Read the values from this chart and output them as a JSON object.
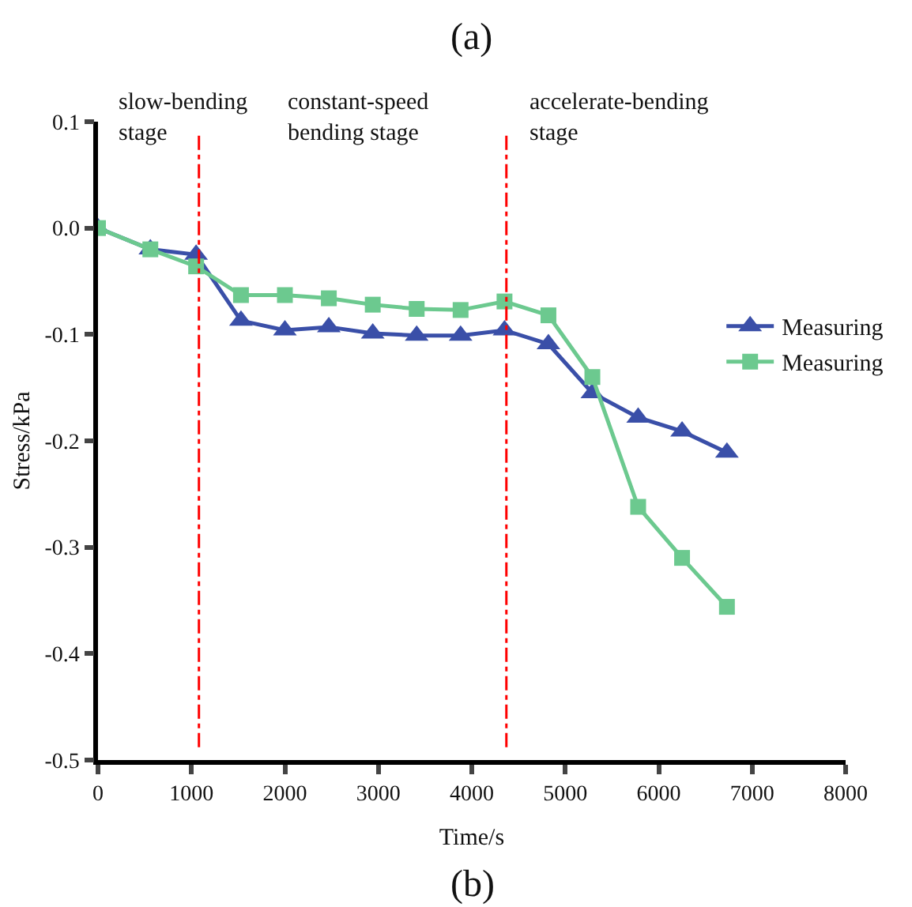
{
  "chart_data": {
    "type": "line",
    "xlabel": "Time/s",
    "ylabel": "Stress/kPa",
    "annotations": [
      "(a)",
      "(b)",
      "slow-bending\nstage",
      "constant-speed\nbending stage",
      "accelerate-bending\nstage"
    ],
    "x": [
      0,
      560,
      1050,
      1530,
      2000,
      2470,
      2940,
      3410,
      3880,
      4350,
      4820,
      5290,
      5780,
      6250,
      6730
    ],
    "series": [
      {
        "name": "Measuring",
        "color": "#3a4fa8",
        "marker": "triangle",
        "values": [
          0,
          -0.02,
          -0.025,
          -0.087,
          -0.096,
          -0.093,
          -0.099,
          -0.101,
          -0.101,
          -0.096,
          -0.109,
          -0.155,
          -0.178,
          -0.191,
          -0.211
        ]
      },
      {
        "name": "Measuring",
        "color": "#6cc98f",
        "marker": "square",
        "values": [
          0,
          -0.02,
          -0.036,
          -0.063,
          -0.063,
          -0.066,
          -0.072,
          -0.076,
          -0.077,
          -0.069,
          -0.082,
          -0.14,
          -0.262,
          -0.31,
          -0.356
        ]
      }
    ],
    "ref_lines": [
      {
        "axis": "x",
        "value": 1080,
        "color": "#ff0000",
        "line_style": "dashdot"
      },
      {
        "axis": "x",
        "value": 4370,
        "color": "#ff0000",
        "line_style": "dashdot"
      }
    ],
    "xlim": [
      0,
      8000
    ],
    "xticks": [
      0,
      1000,
      2000,
      3000,
      4000,
      5000,
      6000,
      7000,
      8000
    ],
    "ylim": [
      -0.5,
      0.1
    ],
    "yticks": [
      {
        "value": 0.1,
        "label": "0.1"
      },
      {
        "value": 0.0,
        "label": "0.0"
      },
      {
        "value": -0.1,
        "label": "-0.1"
      },
      {
        "value": -0.2,
        "label": "-0.2"
      },
      {
        "value": -0.3,
        "label": "-0.3"
      },
      {
        "value": -0.4,
        "label": "-0.4"
      },
      {
        "value": -0.5,
        "label": "-0.5"
      }
    ],
    "legend": "right",
    "line_style": "solid"
  }
}
